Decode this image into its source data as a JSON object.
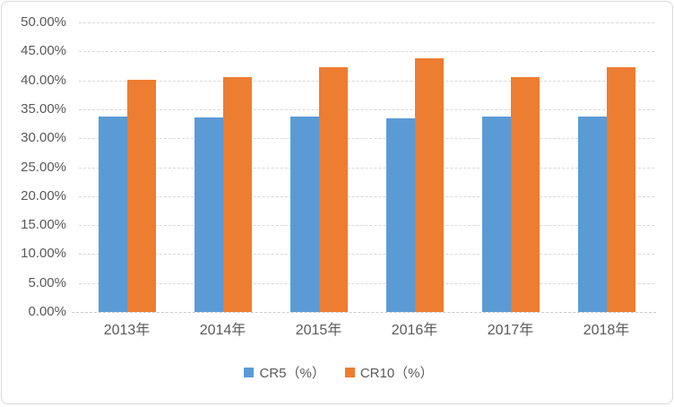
{
  "chart_data": {
    "type": "bar",
    "title": "",
    "xlabel": "",
    "ylabel": "",
    "categories": [
      "2013年",
      "2014年",
      "2015年",
      "2016年",
      "2017年",
      "2018年"
    ],
    "series": [
      {
        "name": "CR5（%）",
        "color": "#5B9BD5",
        "values": [
          33.7,
          33.6,
          33.8,
          33.5,
          33.7,
          33.7
        ]
      },
      {
        "name": "CR10（%）",
        "color": "#ED7D31",
        "values": [
          40.1,
          40.5,
          42.3,
          43.8,
          40.5,
          42.2
        ]
      }
    ],
    "ylim": [
      0,
      50
    ],
    "y_tick_step": 5,
    "y_tick_labels": [
      "50.00%",
      "45.00%",
      "40.00%",
      "35.00%",
      "30.00%",
      "25.00%",
      "20.00%",
      "15.00%",
      "10.00%",
      "5.00%",
      "0.00%"
    ],
    "grid": true,
    "gridline_color": "#D9D9D9",
    "legend_position": "bottom"
  },
  "frame": {
    "border_color": "#D9D9D9",
    "background": "#ffffff",
    "text_color": "#595959"
  }
}
